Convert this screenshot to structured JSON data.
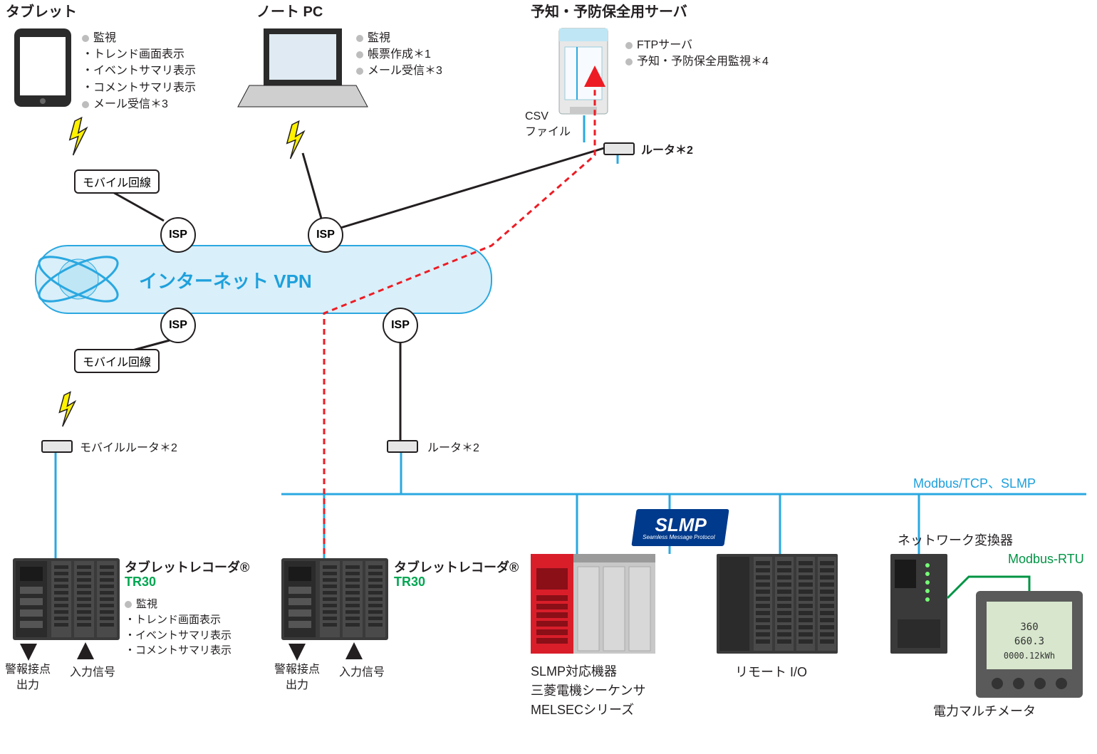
{
  "colors": {
    "stroke": "#231f20",
    "blue_line": "#2aa8e0",
    "blue_text": "#1da0dc",
    "red_dash": "#ed1c24",
    "green": "#00a651",
    "green2": "#009444",
    "vpn_fill": "#d9eff9",
    "vpn_stroke": "#2aa8e0",
    "lightning_fill": "#fff200",
    "lightning_stroke": "#231f20",
    "plc_red": "#d91e2a",
    "plc_grey": "#c8c8c8",
    "dark": "#3a3a3a",
    "dark2": "#2b2b2b",
    "meter_body": "#5a5a5a",
    "meter_face": "#d7e6cc",
    "slmp_blue": "#003a8c"
  },
  "tablet": {
    "title": "タブレット",
    "items": [
      "監視",
      "・トレンド画面表示",
      "・イベントサマリ表示",
      "・コメントサマリ表示",
      "メール受信＊3"
    ]
  },
  "laptop": {
    "title": "ノート PC",
    "items": [
      "監視",
      "帳票作成＊1",
      "メール受信＊3"
    ]
  },
  "server": {
    "title": "予知・予防保全用サーバ",
    "items": [
      "FTPサーバ",
      "予知・予防保全用監視＊4"
    ]
  },
  "vpn": "インターネット VPN",
  "isp": "ISP",
  "mobile_line": "モバイル回線",
  "csv": "CSV\nファイル",
  "router_label": "ルータ＊2",
  "mobile_router_label": "モバイルルータ＊2",
  "modbus_tcp": "Modbus/TCP、SLMP",
  "tr30_title": "タブレットレコーダ®",
  "tr30_model": "TR30",
  "tr30_features": [
    "監視",
    "・トレンド画面表示",
    "・イベントサマリ表示",
    "・コメントサマリ表示"
  ],
  "io_labels": {
    "alarm": "警報接点\n出力",
    "input": "入力信号"
  },
  "slmp_badge": {
    "main": "SLMP",
    "sub": "Seamless Message Protocol"
  },
  "slmp_device": "SLMP対応機器\n三菱電機シーケンサ\nMELSECシリーズ",
  "remote_io": "リモート I/O",
  "net_converter": "ネットワーク変換器",
  "modbus_rtu": "Modbus-RTU",
  "power_meter": "電力マルチメータ"
}
